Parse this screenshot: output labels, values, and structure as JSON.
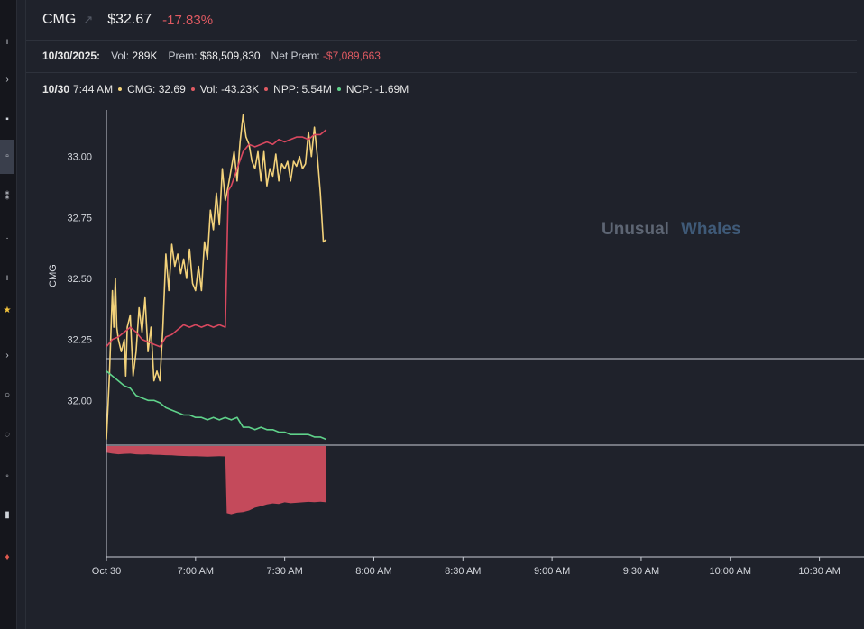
{
  "header": {
    "ticker": "CMG",
    "price": "$32.67",
    "change": "-17.83%"
  },
  "stats": {
    "date": "10/30/2025:",
    "vol_label": "Vol:",
    "vol_value": "289K",
    "prem_label": "Prem:",
    "prem_value": "$68,509,830",
    "net_prem_label": "Net Prem:",
    "net_prem_value": "-$7,089,663"
  },
  "legend": {
    "date": "10/30",
    "time": "7:44 AM",
    "cmg": "CMG: 32.69",
    "vol": "Vol: -43.23K",
    "npp": "NPP: 5.54M",
    "ncp": "NCP: -1.69M"
  },
  "watermark": {
    "part1": "Unusual",
    "part2": "Whales"
  },
  "colors": {
    "price": "#f3d27a",
    "npp": "#d9485f",
    "ncp": "#5fd28a",
    "volume_fill": "#c44a5b",
    "negative": "#e05a62"
  },
  "chart_data": {
    "type": "line",
    "ylabel": "CMG",
    "yticks": [
      "33.00",
      "32.75",
      "32.50",
      "32.25",
      "32.00"
    ],
    "ylim": [
      31.82,
      33.18
    ],
    "xticks": [
      "Oct 30",
      "7:00 AM",
      "7:30 AM",
      "8:00 AM",
      "8:30 AM",
      "9:00 AM",
      "9:30 AM",
      "10:00 AM",
      "10:30 AM"
    ],
    "x_minutes_range": [
      0,
      255
    ],
    "grid": false,
    "series": [
      {
        "key": "price",
        "name": "CMG",
        "x": [
          0,
          1,
          2,
          2.5,
          3,
          3.5,
          4,
          5,
          6,
          6.5,
          7,
          8,
          9,
          10,
          11,
          12,
          13,
          14,
          15,
          16,
          17,
          18,
          19,
          20,
          21,
          22,
          23,
          24,
          25,
          26,
          27,
          28,
          29,
          30,
          31,
          32,
          33,
          34,
          35,
          36,
          37,
          38,
          39,
          40,
          41,
          42,
          43,
          44,
          45,
          46,
          47,
          48,
          49,
          50,
          51,
          52,
          53,
          54,
          55,
          56,
          57,
          58,
          59,
          60,
          61,
          62,
          63,
          64,
          65,
          66,
          67,
          68,
          69,
          70,
          71,
          72,
          73,
          74
        ],
        "y": [
          31.84,
          32.1,
          32.45,
          32.3,
          32.5,
          32.3,
          32.25,
          32.2,
          32.25,
          32.1,
          32.3,
          32.35,
          32.1,
          32.2,
          32.38,
          32.28,
          32.42,
          32.2,
          32.3,
          32.08,
          32.12,
          32.08,
          32.3,
          32.6,
          32.45,
          32.64,
          32.55,
          32.6,
          32.52,
          32.58,
          32.5,
          32.62,
          32.48,
          32.45,
          32.55,
          32.45,
          32.65,
          32.58,
          32.78,
          32.7,
          32.85,
          32.72,
          32.95,
          32.82,
          32.88,
          32.95,
          33.02,
          32.9,
          33.06,
          33.17,
          33.08,
          33.05,
          32.98,
          32.95,
          33.02,
          32.9,
          33.02,
          32.88,
          32.95,
          32.92,
          33.01,
          32.9,
          32.97,
          32.95,
          32.98,
          32.9,
          32.98,
          32.96,
          33.0,
          32.95,
          32.97,
          33.1,
          33.0,
          33.12,
          33.0,
          32.85,
          32.65,
          32.66
        ],
        "note": "price line (yellow)"
      },
      {
        "key": "npp",
        "name": "NPP",
        "x": [
          0,
          2,
          4,
          6,
          8,
          10,
          12,
          14,
          16,
          18,
          20,
          22,
          24,
          26,
          28,
          30,
          32,
          34,
          36,
          38,
          40,
          41,
          42,
          44,
          46,
          48,
          50,
          52,
          54,
          56,
          58,
          60,
          62,
          64,
          66,
          68,
          70,
          72,
          74
        ],
        "y": [
          32.22,
          32.25,
          32.26,
          32.28,
          32.3,
          32.28,
          32.25,
          32.24,
          32.23,
          32.22,
          32.26,
          32.27,
          32.29,
          32.31,
          32.3,
          32.31,
          32.3,
          32.31,
          32.3,
          32.31,
          32.3,
          32.86,
          32.88,
          32.95,
          33.02,
          33.05,
          33.04,
          33.05,
          33.06,
          33.05,
          33.07,
          33.06,
          33.07,
          33.08,
          33.08,
          33.07,
          33.09,
          33.09,
          33.11
        ]
      },
      {
        "key": "ncp",
        "name": "NCP",
        "x": [
          0,
          2,
          4,
          6,
          8,
          10,
          12,
          14,
          16,
          18,
          20,
          22,
          24,
          26,
          28,
          30,
          32,
          34,
          36,
          38,
          40,
          42,
          44,
          46,
          48,
          50,
          52,
          54,
          56,
          58,
          60,
          62,
          64,
          66,
          68,
          70,
          72,
          74
        ],
        "y": [
          32.12,
          32.1,
          32.08,
          32.06,
          32.05,
          32.02,
          32.01,
          32.0,
          32.0,
          31.99,
          31.97,
          31.96,
          31.95,
          31.94,
          31.94,
          31.93,
          31.93,
          31.92,
          31.93,
          31.92,
          31.93,
          31.92,
          31.93,
          31.89,
          31.89,
          31.88,
          31.89,
          31.88,
          31.88,
          31.87,
          31.87,
          31.86,
          31.86,
          31.86,
          31.86,
          31.85,
          31.85,
          31.84
        ]
      }
    ],
    "volume": {
      "key": "net_volume",
      "name": "Vol",
      "x": [
        0,
        2,
        4,
        6,
        8,
        10,
        12,
        14,
        16,
        18,
        20,
        22,
        24,
        26,
        28,
        30,
        32,
        34,
        36,
        38,
        40,
        40.5,
        42,
        44,
        46,
        48,
        50,
        52,
        54,
        56,
        58,
        60,
        62,
        64,
        66,
        68,
        70,
        72,
        74
      ],
      "y": [
        -3,
        -3.5,
        -3.8,
        -3.6,
        -3.5,
        -3.8,
        -3.9,
        -3.8,
        -4.0,
        -4.1,
        -4.2,
        -4.3,
        -4.5,
        -4.6,
        -4.7,
        -4.7,
        -4.8,
        -4.9,
        -4.8,
        -4.7,
        -4.8,
        -31,
        -31.5,
        -30.8,
        -30.5,
        -29.8,
        -28.5,
        -27.8,
        -27.0,
        -26.5,
        -26.8,
        -26.0,
        -26.4,
        -26.2,
        -26.0,
        -25.8,
        -25.9,
        -25.7,
        -26.0
      ],
      "ylim": [
        -50,
        0
      ]
    }
  }
}
